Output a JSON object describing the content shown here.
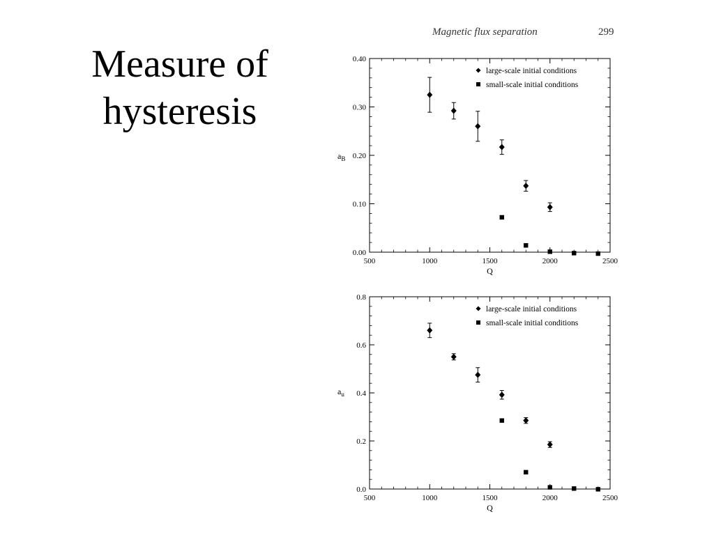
{
  "slide": {
    "title_line1": "Measure of",
    "title_line2": "hysteresis",
    "header_text": "Magnetic flux separation",
    "page_number": "299"
  },
  "chart_data": [
    {
      "type": "scatter",
      "xlabel": "Q",
      "ylabel_main": "a",
      "ylabel_sub": "B",
      "xlim": [
        500,
        2500
      ],
      "ylim": [
        0,
        0.4
      ],
      "xticks": [
        500,
        1000,
        1500,
        2000,
        2500
      ],
      "yticks": [
        0,
        0.1,
        0.2,
        0.3,
        0.4
      ],
      "ytick_labels": [
        "0.00",
        "0.10",
        "0.20",
        "0.30",
        "0.40"
      ],
      "legend_position": "top-right",
      "series": [
        {
          "name": "large-scale initial conditions",
          "marker": "diamond",
          "points": [
            {
              "x": 1000,
              "y": 0.325,
              "err": 0.036
            },
            {
              "x": 1200,
              "y": 0.292,
              "err": 0.017
            },
            {
              "x": 1400,
              "y": 0.26,
              "err": 0.031
            },
            {
              "x": 1600,
              "y": 0.217,
              "err": 0.015
            },
            {
              "x": 1800,
              "y": 0.137,
              "err": 0.011
            },
            {
              "x": 2000,
              "y": 0.093,
              "err": 0.009
            }
          ]
        },
        {
          "name": "small-scale initial conditions",
          "marker": "square",
          "points": [
            {
              "x": 1600,
              "y": 0.072
            },
            {
              "x": 1800,
              "y": 0.014
            },
            {
              "x": 2000,
              "y": 0.001
            },
            {
              "x": 2200,
              "y": -0.002
            },
            {
              "x": 2400,
              "y": -0.003
            }
          ]
        }
      ]
    },
    {
      "type": "scatter",
      "xlabel": "Q",
      "ylabel_main": "a",
      "ylabel_sub": "u",
      "xlim": [
        500,
        2500
      ],
      "ylim": [
        0,
        0.8
      ],
      "xticks": [
        500,
        1000,
        1500,
        2000,
        2500
      ],
      "yticks": [
        0,
        0.2,
        0.4,
        0.6,
        0.8
      ],
      "ytick_labels": [
        "0.0",
        "0.2",
        "0.4",
        "0.6",
        "0.8"
      ],
      "legend_position": "top-right",
      "series": [
        {
          "name": "large-scale initial conditions",
          "marker": "diamond",
          "points": [
            {
              "x": 1000,
              "y": 0.66,
              "err": 0.03
            },
            {
              "x": 1200,
              "y": 0.55,
              "err": 0.013
            },
            {
              "x": 1400,
              "y": 0.475,
              "err": 0.03
            },
            {
              "x": 1600,
              "y": 0.392,
              "err": 0.018
            },
            {
              "x": 1800,
              "y": 0.285,
              "err": 0.012
            },
            {
              "x": 2000,
              "y": 0.185,
              "err": 0.012
            }
          ]
        },
        {
          "name": "small-scale initial conditions",
          "marker": "square",
          "points": [
            {
              "x": 1600,
              "y": 0.285
            },
            {
              "x": 1800,
              "y": 0.07
            },
            {
              "x": 2000,
              "y": 0.007
            },
            {
              "x": 2200,
              "y": 0.002
            },
            {
              "x": 2400,
              "y": -0.001
            }
          ]
        }
      ]
    }
  ]
}
